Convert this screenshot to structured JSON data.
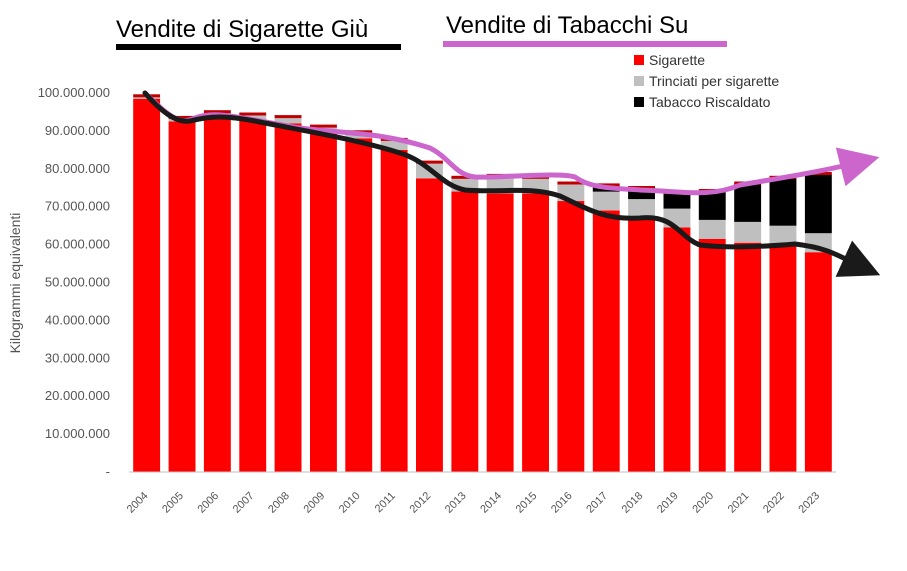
{
  "titles": {
    "left": "Vendite di Sigarette Giù",
    "right": "Vendite di Tabacchi Su",
    "left_underline_color": "#000000",
    "right_underline_color": "#cc66cc"
  },
  "chart_data": {
    "type": "bar",
    "stacked": true,
    "ylabel": "Kilogrammi equivalenti",
    "ylim": [
      0,
      100000000
    ],
    "yticks": [
      "-",
      "10.000.000",
      "20.000.000",
      "30.000.000",
      "40.000.000",
      "50.000.000",
      "60.000.000",
      "70.000.000",
      "80.000.000",
      "90.000.000",
      "100.000.000"
    ],
    "categories": [
      "2004",
      "2005",
      "2006",
      "2007",
      "2008",
      "2009",
      "2010",
      "2011",
      "2012",
      "2013",
      "2014",
      "2015",
      "2016",
      "2017",
      "2018",
      "2019",
      "2020",
      "2021",
      "2022",
      "2023"
    ],
    "legend_position": "top-right",
    "series": [
      {
        "name": "Sigarette",
        "color": "#ff0000",
        "values": [
          98500000,
          92500000,
          93800000,
          93000000,
          92000000,
          89500000,
          88000000,
          85000000,
          77500000,
          74000000,
          73500000,
          73500000,
          71500000,
          69000000,
          66500000,
          64500000,
          61500000,
          60500000,
          59500000,
          58000000
        ]
      },
      {
        "name": "Trinciati per sigarette",
        "color": "#bfbfbf",
        "values": [
          500000,
          800000,
          1000000,
          1200000,
          1500000,
          1500000,
          1500000,
          2500000,
          4000000,
          3500000,
          4500000,
          4000000,
          4500000,
          5000000,
          5500000,
          5000000,
          5000000,
          5500000,
          5500000,
          5000000
        ]
      },
      {
        "name": "Tabacco Riscaldato",
        "color": "#000000",
        "values": [
          0,
          0,
          0,
          0,
          0,
          0,
          0,
          0,
          0,
          0,
          0,
          0,
          0,
          1500000,
          2800000,
          4000000,
          7500000,
          10000000,
          12500000,
          15500000
        ]
      }
    ],
    "top_caps_color": "#c00000",
    "trend_lines": [
      {
        "label": "Vendite di Sigarette Giù",
        "color": "#000000"
      },
      {
        "label": "Vendite di Tabacchi Su",
        "color": "#cc66cc"
      }
    ]
  }
}
